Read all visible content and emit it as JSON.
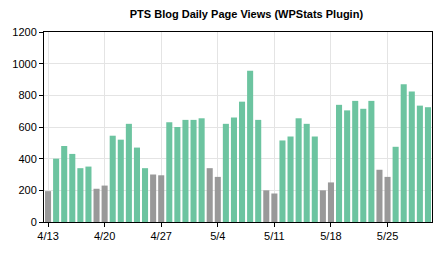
{
  "chart_data": {
    "type": "bar",
    "title": "PTS Blog Daily Page Views (WPStats Plugin)",
    "categories": [
      "4/13",
      null,
      null,
      null,
      null,
      null,
      null,
      "4/20",
      null,
      null,
      null,
      null,
      null,
      null,
      "4/27",
      null,
      null,
      null,
      null,
      null,
      null,
      "5/4",
      null,
      null,
      null,
      null,
      null,
      null,
      "5/11",
      null,
      null,
      null,
      null,
      null,
      null,
      "5/18",
      null,
      null,
      null,
      null,
      null,
      null,
      "5/25",
      null,
      null,
      null,
      null,
      null
    ],
    "values": [
      195,
      400,
      480,
      430,
      340,
      350,
      210,
      230,
      545,
      520,
      620,
      470,
      340,
      300,
      295,
      630,
      600,
      645,
      645,
      655,
      340,
      285,
      620,
      660,
      760,
      955,
      645,
      200,
      180,
      515,
      540,
      655,
      620,
      540,
      200,
      250,
      740,
      705,
      765,
      715,
      765,
      330,
      285,
      475,
      870,
      825,
      735,
      725
    ],
    "colors": [
      "#999999",
      "#6cc4a0",
      "#6cc4a0",
      "#6cc4a0",
      "#6cc4a0",
      "#6cc4a0",
      "#999999",
      "#999999",
      "#6cc4a0",
      "#6cc4a0",
      "#6cc4a0",
      "#6cc4a0",
      "#6cc4a0",
      "#999999",
      "#999999",
      "#6cc4a0",
      "#6cc4a0",
      "#6cc4a0",
      "#6cc4a0",
      "#6cc4a0",
      "#999999",
      "#999999",
      "#6cc4a0",
      "#6cc4a0",
      "#6cc4a0",
      "#6cc4a0",
      "#6cc4a0",
      "#999999",
      "#999999",
      "#6cc4a0",
      "#6cc4a0",
      "#6cc4a0",
      "#6cc4a0",
      "#6cc4a0",
      "#999999",
      "#999999",
      "#6cc4a0",
      "#6cc4a0",
      "#6cc4a0",
      "#6cc4a0",
      "#6cc4a0",
      "#999999",
      "#999999",
      "#6cc4a0",
      "#6cc4a0",
      "#6cc4a0",
      "#6cc4a0",
      "#6cc4a0"
    ],
    "ylim": [
      0,
      1200
    ],
    "yticks": [
      0,
      200,
      400,
      600,
      800,
      1000,
      1200
    ],
    "grid": true
  }
}
